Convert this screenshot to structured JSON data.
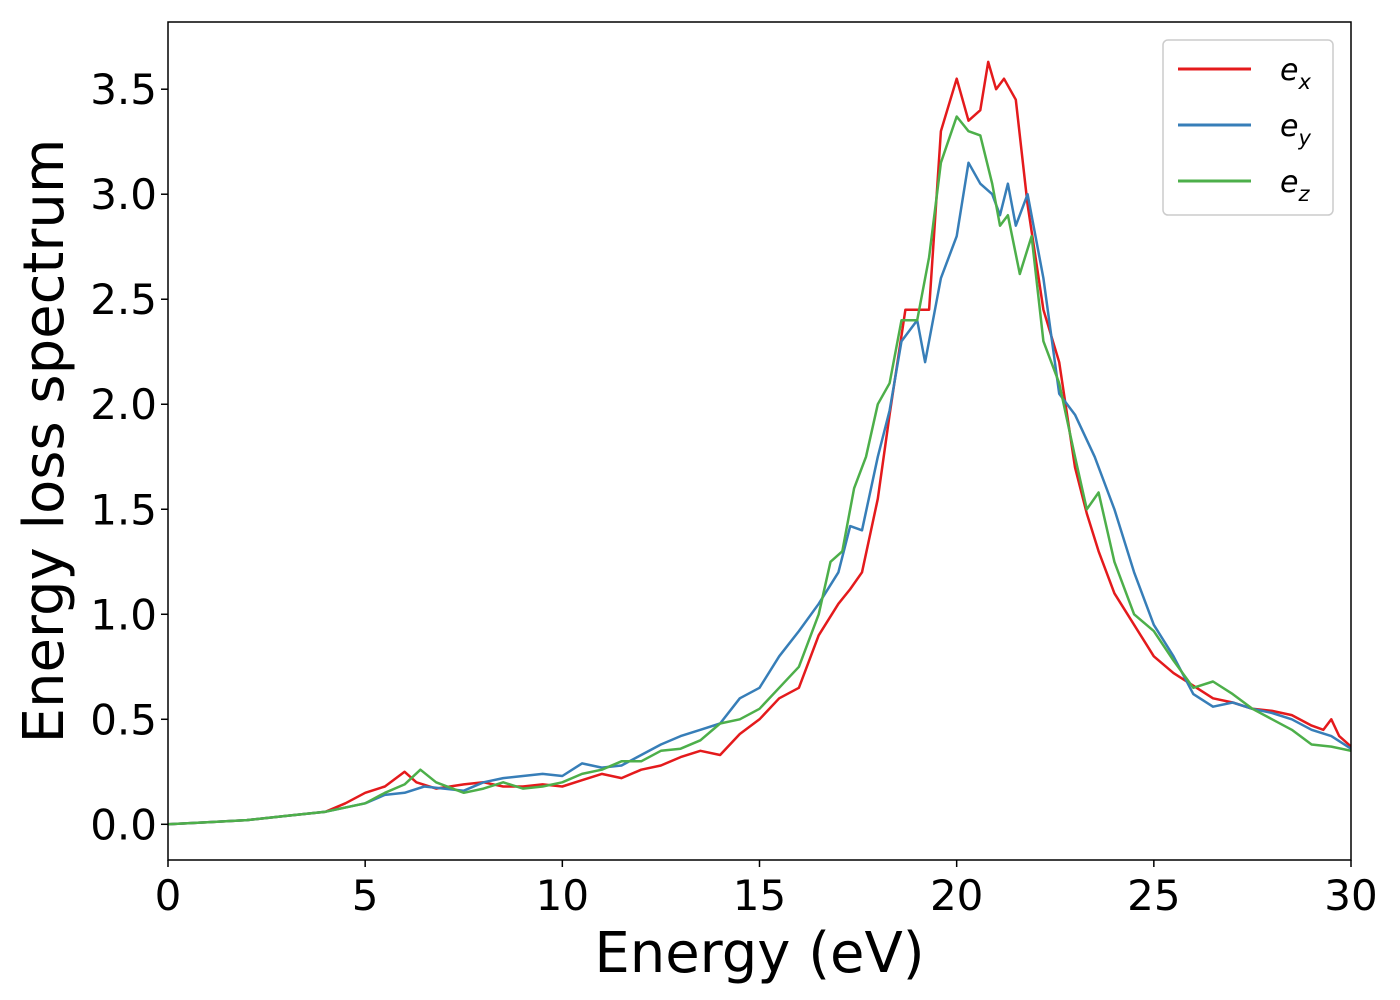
{
  "chart_data": {
    "type": "line",
    "xlabel": "Energy (eV)",
    "ylabel": "Energy loss spectrum",
    "xlim": [
      0,
      30
    ],
    "ylim": [
      -0.17,
      3.82
    ],
    "xticks": [
      0,
      5,
      10,
      15,
      20,
      25,
      30
    ],
    "xtick_labels": [
      "0",
      "5",
      "10",
      "15",
      "20",
      "25",
      "30"
    ],
    "yticks": [
      0.0,
      0.5,
      1.0,
      1.5,
      2.0,
      2.5,
      3.0,
      3.5
    ],
    "ytick_labels": [
      "0.0",
      "0.5",
      "1.0",
      "1.5",
      "2.0",
      "2.5",
      "3.0",
      "3.5"
    ],
    "grid": false,
    "legend_position": "top-right",
    "series": [
      {
        "name": "e_x",
        "label_main": "e",
        "label_sub": "x",
        "color": "#e41a1c",
        "points": [
          [
            0,
            0
          ],
          [
            1,
            0.01
          ],
          [
            2,
            0.02
          ],
          [
            3,
            0.04
          ],
          [
            4,
            0.06
          ],
          [
            4.5,
            0.1
          ],
          [
            5,
            0.15
          ],
          [
            5.5,
            0.18
          ],
          [
            6,
            0.25
          ],
          [
            6.3,
            0.2
          ],
          [
            6.8,
            0.17
          ],
          [
            7.5,
            0.19
          ],
          [
            8,
            0.2
          ],
          [
            8.5,
            0.18
          ],
          [
            9,
            0.18
          ],
          [
            9.5,
            0.19
          ],
          [
            10,
            0.18
          ],
          [
            10.5,
            0.21
          ],
          [
            11,
            0.24
          ],
          [
            11.5,
            0.22
          ],
          [
            12,
            0.26
          ],
          [
            12.5,
            0.28
          ],
          [
            13,
            0.32
          ],
          [
            13.5,
            0.35
          ],
          [
            14,
            0.33
          ],
          [
            14.5,
            0.43
          ],
          [
            15,
            0.5
          ],
          [
            15.5,
            0.6
          ],
          [
            16,
            0.65
          ],
          [
            16.5,
            0.9
          ],
          [
            17,
            1.05
          ],
          [
            17.3,
            1.12
          ],
          [
            17.6,
            1.2
          ],
          [
            18,
            1.55
          ],
          [
            18.3,
            1.95
          ],
          [
            18.7,
            2.45
          ],
          [
            19,
            2.45
          ],
          [
            19.3,
            2.45
          ],
          [
            19.6,
            3.3
          ],
          [
            20,
            3.55
          ],
          [
            20.3,
            3.35
          ],
          [
            20.6,
            3.4
          ],
          [
            20.8,
            3.63
          ],
          [
            21,
            3.5
          ],
          [
            21.2,
            3.55
          ],
          [
            21.5,
            3.45
          ],
          [
            21.8,
            2.95
          ],
          [
            22.2,
            2.45
          ],
          [
            22.6,
            2.2
          ],
          [
            23,
            1.7
          ],
          [
            23.3,
            1.48
          ],
          [
            23.6,
            1.3
          ],
          [
            24,
            1.1
          ],
          [
            24.5,
            0.95
          ],
          [
            25,
            0.8
          ],
          [
            25.5,
            0.72
          ],
          [
            26,
            0.66
          ],
          [
            26.5,
            0.6
          ],
          [
            27,
            0.58
          ],
          [
            27.5,
            0.55
          ],
          [
            28,
            0.54
          ],
          [
            28.5,
            0.52
          ],
          [
            29,
            0.47
          ],
          [
            29.3,
            0.45
          ],
          [
            29.5,
            0.5
          ],
          [
            29.7,
            0.42
          ],
          [
            30,
            0.37
          ]
        ]
      },
      {
        "name": "e_y",
        "label_main": "e",
        "label_sub": "y",
        "color": "#377eb8",
        "points": [
          [
            0,
            0
          ],
          [
            1,
            0.01
          ],
          [
            2,
            0.02
          ],
          [
            3,
            0.04
          ],
          [
            4,
            0.06
          ],
          [
            5,
            0.1
          ],
          [
            5.5,
            0.14
          ],
          [
            6,
            0.15
          ],
          [
            6.5,
            0.18
          ],
          [
            7,
            0.17
          ],
          [
            7.5,
            0.16
          ],
          [
            8,
            0.2
          ],
          [
            8.5,
            0.22
          ],
          [
            9,
            0.23
          ],
          [
            9.5,
            0.24
          ],
          [
            10,
            0.23
          ],
          [
            10.5,
            0.29
          ],
          [
            11,
            0.27
          ],
          [
            11.5,
            0.28
          ],
          [
            12,
            0.33
          ],
          [
            12.5,
            0.38
          ],
          [
            13,
            0.42
          ],
          [
            13.5,
            0.45
          ],
          [
            14,
            0.48
          ],
          [
            14.5,
            0.6
          ],
          [
            15,
            0.65
          ],
          [
            15.5,
            0.8
          ],
          [
            16,
            0.92
          ],
          [
            16.5,
            1.05
          ],
          [
            17,
            1.2
          ],
          [
            17.3,
            1.42
          ],
          [
            17.6,
            1.4
          ],
          [
            18,
            1.75
          ],
          [
            18.3,
            1.97
          ],
          [
            18.6,
            2.3
          ],
          [
            19,
            2.4
          ],
          [
            19.2,
            2.2
          ],
          [
            19.6,
            2.6
          ],
          [
            20,
            2.8
          ],
          [
            20.3,
            3.15
          ],
          [
            20.6,
            3.05
          ],
          [
            20.9,
            3.0
          ],
          [
            21.1,
            2.9
          ],
          [
            21.3,
            3.05
          ],
          [
            21.5,
            2.85
          ],
          [
            21.8,
            3.0
          ],
          [
            22.2,
            2.6
          ],
          [
            22.6,
            2.05
          ],
          [
            23,
            1.95
          ],
          [
            23.5,
            1.75
          ],
          [
            24,
            1.5
          ],
          [
            24.5,
            1.2
          ],
          [
            25,
            0.95
          ],
          [
            25.5,
            0.8
          ],
          [
            26,
            0.62
          ],
          [
            26.5,
            0.56
          ],
          [
            27,
            0.58
          ],
          [
            27.5,
            0.55
          ],
          [
            28,
            0.53
          ],
          [
            28.5,
            0.5
          ],
          [
            29,
            0.45
          ],
          [
            29.5,
            0.42
          ],
          [
            30,
            0.36
          ]
        ]
      },
      {
        "name": "e_z",
        "label_main": "e",
        "label_sub": "z",
        "color": "#4daf4a",
        "points": [
          [
            0,
            0
          ],
          [
            1,
            0.01
          ],
          [
            2,
            0.02
          ],
          [
            3,
            0.04
          ],
          [
            4,
            0.06
          ],
          [
            5,
            0.1
          ],
          [
            5.5,
            0.15
          ],
          [
            6,
            0.19
          ],
          [
            6.4,
            0.26
          ],
          [
            6.8,
            0.2
          ],
          [
            7.5,
            0.15
          ],
          [
            8,
            0.17
          ],
          [
            8.5,
            0.2
          ],
          [
            9,
            0.17
          ],
          [
            9.5,
            0.18
          ],
          [
            10,
            0.2
          ],
          [
            10.5,
            0.24
          ],
          [
            11,
            0.26
          ],
          [
            11.5,
            0.3
          ],
          [
            12,
            0.3
          ],
          [
            12.5,
            0.35
          ],
          [
            13,
            0.36
          ],
          [
            13.5,
            0.4
          ],
          [
            14,
            0.48
          ],
          [
            14.5,
            0.5
          ],
          [
            15,
            0.55
          ],
          [
            15.5,
            0.65
          ],
          [
            16,
            0.75
          ],
          [
            16.5,
            1.0
          ],
          [
            16.8,
            1.25
          ],
          [
            17.1,
            1.3
          ],
          [
            17.4,
            1.6
          ],
          [
            17.7,
            1.75
          ],
          [
            18,
            2.0
          ],
          [
            18.3,
            2.1
          ],
          [
            18.6,
            2.4
          ],
          [
            19,
            2.4
          ],
          [
            19.3,
            2.7
          ],
          [
            19.6,
            3.15
          ],
          [
            20,
            3.37
          ],
          [
            20.3,
            3.3
          ],
          [
            20.6,
            3.28
          ],
          [
            20.9,
            3.05
          ],
          [
            21.1,
            2.85
          ],
          [
            21.3,
            2.9
          ],
          [
            21.6,
            2.62
          ],
          [
            21.9,
            2.8
          ],
          [
            22.2,
            2.3
          ],
          [
            22.6,
            2.1
          ],
          [
            23,
            1.75
          ],
          [
            23.3,
            1.5
          ],
          [
            23.6,
            1.58
          ],
          [
            24,
            1.25
          ],
          [
            24.5,
            1.0
          ],
          [
            25,
            0.92
          ],
          [
            25.5,
            0.78
          ],
          [
            26,
            0.65
          ],
          [
            26.5,
            0.68
          ],
          [
            27,
            0.62
          ],
          [
            27.5,
            0.55
          ],
          [
            28,
            0.5
          ],
          [
            28.5,
            0.45
          ],
          [
            29,
            0.38
          ],
          [
            29.5,
            0.37
          ],
          [
            30,
            0.35
          ]
        ]
      }
    ]
  }
}
